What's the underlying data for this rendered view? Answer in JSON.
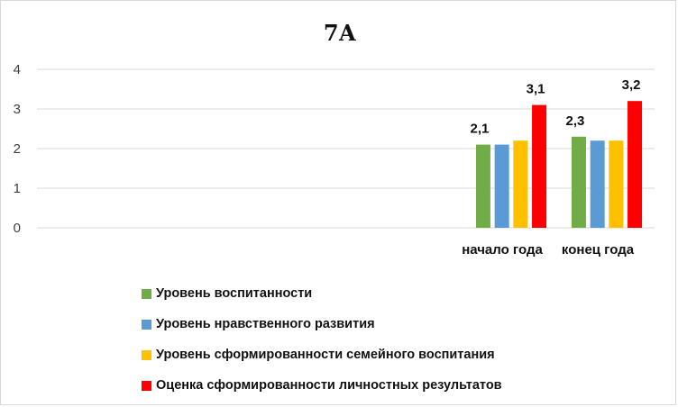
{
  "chart_data": {
    "type": "bar",
    "title": "7А",
    "categories": [
      "начало года",
      "конец года"
    ],
    "yticks": [
      "0",
      "1",
      "2",
      "3",
      "4"
    ],
    "ylim": [
      0,
      4
    ],
    "grid": true,
    "legend_position": "bottom",
    "series": [
      {
        "name": "Уровень воспитанности",
        "color": "#70ad47",
        "values": [
          2.1,
          2.3
        ],
        "data_labels": [
          "2,1",
          "2,3"
        ]
      },
      {
        "name": "Уровень нравственного развития",
        "color": "#5b9bd5",
        "values": [
          2.1,
          2.2
        ],
        "data_labels": [
          null,
          null
        ]
      },
      {
        "name": "Уровень сформированности семейного воспитания",
        "color": "#ffc000",
        "values": [
          2.2,
          2.2
        ],
        "data_labels": [
          null,
          null
        ]
      },
      {
        "name": "Оценка сформированности личностных результатов",
        "color": "#ff0000",
        "values": [
          3.1,
          3.2
        ],
        "data_labels": [
          "3,1",
          "3,2"
        ]
      }
    ]
  }
}
